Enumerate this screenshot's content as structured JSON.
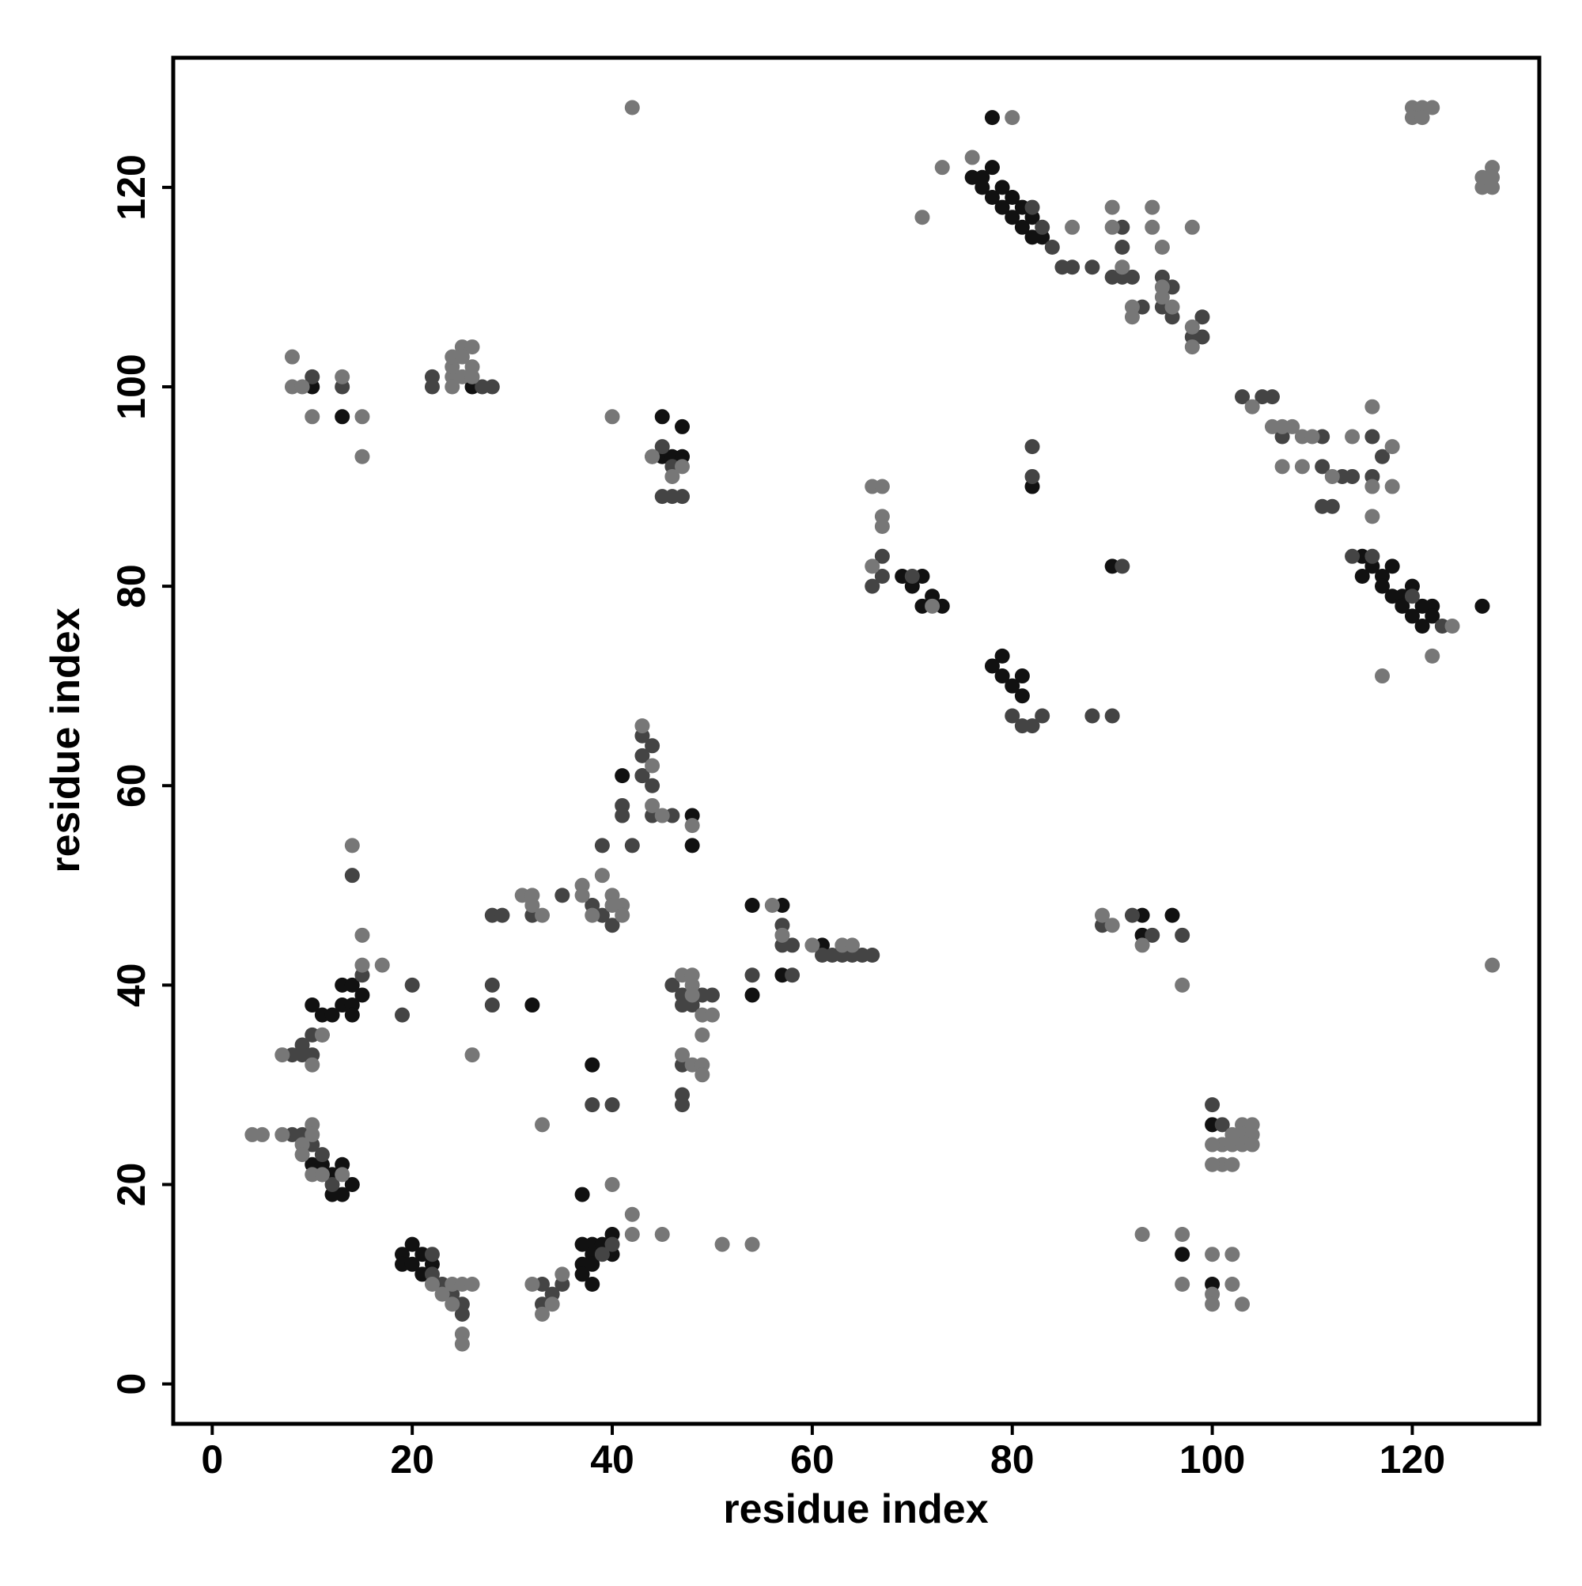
{
  "chart_data": {
    "type": "scatter",
    "x_label": "residue index",
    "y_label": "residue index",
    "xlim": [
      -3.9,
      132.7
    ],
    "ylim": [
      -4,
      133
    ],
    "xticks": [
      0,
      20,
      40,
      60,
      80,
      100,
      120
    ],
    "yticks": [
      0,
      20,
      40,
      60,
      80,
      100,
      120
    ],
    "grid": false,
    "series": [
      {
        "color": "#111111",
        "x": [
          76,
          77,
          78,
          77,
          78,
          79,
          80,
          79,
          80,
          81,
          81,
          82,
          82,
          83,
          78,
          115,
          115,
          116,
          117,
          117,
          118,
          118,
          119,
          119,
          120,
          120,
          121,
          121,
          122,
          122,
          127,
          69,
          70,
          71,
          71,
          72,
          73,
          79,
          78,
          79,
          80,
          81,
          81,
          82,
          90,
          93,
          93,
          96,
          10,
          11,
          12,
          13,
          13,
          14,
          14,
          14,
          15,
          10,
          11,
          11,
          12,
          12,
          13,
          13,
          14,
          20,
          19,
          19,
          20,
          21,
          22,
          21,
          37,
          38,
          38,
          37,
          37,
          38,
          38,
          39,
          40,
          40,
          37,
          38,
          32,
          13,
          48,
          48,
          43,
          41,
          54,
          57,
          61,
          57,
          54,
          45,
          46,
          47,
          47,
          45,
          10,
          26,
          97,
          100,
          100
        ],
        "values": [
          121,
          121,
          122,
          120,
          119,
          120,
          119,
          118,
          117,
          118,
          116,
          117,
          115,
          115,
          127,
          83,
          81,
          82,
          81,
          80,
          82,
          79,
          79,
          78,
          80,
          77,
          78,
          76,
          78,
          77,
          78,
          81,
          80,
          81,
          78,
          79,
          78,
          73,
          72,
          71,
          70,
          71,
          69,
          90,
          82,
          47,
          45,
          47,
          38,
          37,
          37,
          38,
          40,
          40,
          38,
          37,
          39,
          22,
          22,
          21,
          21,
          19,
          22,
          19,
          20,
          14,
          13,
          12,
          12,
          13,
          12,
          11,
          14,
          14,
          13,
          12,
          11,
          12,
          10,
          14,
          15,
          13,
          19,
          32,
          38,
          97,
          57,
          54,
          61,
          61,
          48,
          48,
          44,
          41,
          39,
          93,
          93,
          93,
          96,
          97,
          100,
          100,
          13,
          10,
          26
        ]
      },
      {
        "color": "#444444",
        "x": [
          82,
          83,
          84,
          86,
          88,
          91,
          91,
          92,
          95,
          95,
          98,
          99,
          99,
          85,
          105,
          106,
          107,
          111,
          111,
          111,
          112,
          113,
          114,
          116,
          116,
          117,
          116,
          114,
          120,
          123,
          66,
          67,
          67,
          70,
          80,
          81,
          82,
          83,
          82,
          82,
          88,
          90,
          91,
          89,
          92,
          94,
          97,
          100,
          101,
          101,
          8,
          9,
          9,
          10,
          10,
          11,
          15,
          14,
          19,
          20,
          8,
          9,
          10,
          11,
          12,
          22,
          22,
          23,
          24,
          25,
          25,
          33,
          33,
          34,
          35,
          39,
          40,
          28,
          29,
          28,
          28,
          32,
          35,
          38,
          39,
          40,
          39,
          42,
          41,
          41,
          43,
          43,
          44,
          44,
          46,
          43,
          44,
          46,
          47,
          47,
          48,
          49,
          50,
          47,
          47,
          47,
          38,
          40,
          54,
          57,
          57,
          58,
          58,
          61,
          62,
          63,
          64,
          65,
          66,
          45,
          46,
          44,
          45,
          46,
          47,
          22,
          22,
          27,
          28,
          13,
          10,
          103,
          96,
          96,
          91,
          90,
          93
        ],
        "values": [
          118,
          116,
          114,
          112,
          112,
          116,
          114,
          111,
          111,
          108,
          105,
          105,
          107,
          112,
          99,
          99,
          95,
          95,
          92,
          88,
          88,
          91,
          83,
          83,
          91,
          93,
          95,
          91,
          79,
          76,
          80,
          83,
          81,
          81,
          67,
          66,
          66,
          67,
          94,
          91,
          67,
          67,
          82,
          46,
          47,
          45,
          45,
          28,
          26,
          24,
          33,
          34,
          33,
          35,
          33,
          35,
          41,
          51,
          37,
          40,
          25,
          25,
          24,
          23,
          20,
          13,
          11,
          10,
          9,
          8,
          7,
          10,
          8,
          9,
          10,
          13,
          14,
          47,
          47,
          40,
          38,
          47,
          49,
          48,
          47,
          46,
          54,
          54,
          58,
          57,
          63,
          61,
          60,
          57,
          57,
          65,
          64,
          40,
          39,
          38,
          38,
          39,
          39,
          32,
          29,
          28,
          28,
          28,
          41,
          46,
          44,
          44,
          41,
          43,
          43,
          43,
          43,
          43,
          43,
          94,
          92,
          93,
          89,
          89,
          89,
          100,
          101,
          100,
          100,
          100,
          101,
          99,
          110,
          107,
          111,
          111,
          108
        ]
      },
      {
        "color": "#777777",
        "x": [
          8,
          8,
          9,
          10,
          13,
          15,
          15,
          24,
          24,
          24,
          25,
          25,
          26,
          26,
          24,
          25,
          26,
          42,
          40,
          44,
          46,
          47,
          66,
          67,
          67,
          67,
          66,
          72,
          71,
          73,
          76,
          80,
          86,
          90,
          90,
          91,
          92,
          92,
          94,
          94,
          95,
          95,
          95,
          96,
          98,
          98,
          98,
          104,
          106,
          107,
          108,
          107,
          109,
          109,
          110,
          112,
          114,
          116,
          116,
          116,
          118,
          118,
          117,
          122,
          124,
          120,
          121,
          122,
          120,
          121,
          127,
          127,
          128,
          128,
          128,
          128,
          89,
          90,
          93,
          97,
          101,
          101,
          102,
          102,
          103,
          103,
          103,
          104,
          104,
          104,
          100,
          100,
          102,
          102,
          100,
          100,
          100,
          102,
          103,
          97,
          97,
          93,
          4,
          5,
          7,
          9,
          9,
          10,
          10,
          10,
          11,
          7,
          10,
          11,
          13,
          14,
          15,
          15,
          17,
          26,
          22,
          23,
          24,
          24,
          25,
          26,
          25,
          25,
          32,
          33,
          34,
          35,
          33,
          42,
          42,
          45,
          40,
          51,
          54,
          31,
          32,
          32,
          33,
          37,
          37,
          38,
          39,
          40,
          40,
          41,
          41,
          43,
          44,
          44,
          45,
          48,
          47,
          48,
          48,
          48,
          49,
          50,
          49,
          47,
          48,
          49,
          49,
          60,
          63,
          64,
          56,
          57
        ],
        "values": [
          103,
          100,
          100,
          97,
          101,
          97,
          93,
          101,
          102,
          103,
          101,
          104,
          104,
          102,
          100,
          103,
          101,
          128,
          97,
          93,
          91,
          92,
          90,
          90,
          87,
          86,
          82,
          78,
          117,
          122,
          123,
          127,
          116,
          118,
          116,
          112,
          108,
          107,
          118,
          116,
          114,
          110,
          109,
          108,
          116,
          106,
          104,
          98,
          96,
          96,
          96,
          92,
          92,
          95,
          95,
          91,
          95,
          98,
          90,
          87,
          94,
          90,
          71,
          73,
          76,
          128,
          128,
          128,
          127,
          127,
          120,
          121,
          122,
          121,
          120,
          42,
          47,
          46,
          44,
          40,
          24,
          22,
          25,
          24,
          26,
          25,
          24,
          26,
          25,
          24,
          22,
          24,
          22,
          13,
          13,
          9,
          8,
          10,
          8,
          15,
          10,
          15,
          25,
          25,
          25,
          24,
          23,
          26,
          25,
          21,
          21,
          33,
          32,
          35,
          21,
          54,
          45,
          42,
          42,
          33,
          10,
          9,
          8,
          10,
          10,
          10,
          5,
          4,
          10,
          7,
          8,
          11,
          26,
          17,
          15,
          15,
          20,
          14,
          14,
          49,
          49,
          48,
          47,
          50,
          49,
          47,
          51,
          49,
          48,
          48,
          47,
          66,
          62,
          58,
          57,
          56,
          41,
          41,
          40,
          39,
          37,
          37,
          35,
          33,
          32,
          32,
          31,
          44,
          44,
          44,
          48,
          45
        ]
      }
    ]
  }
}
